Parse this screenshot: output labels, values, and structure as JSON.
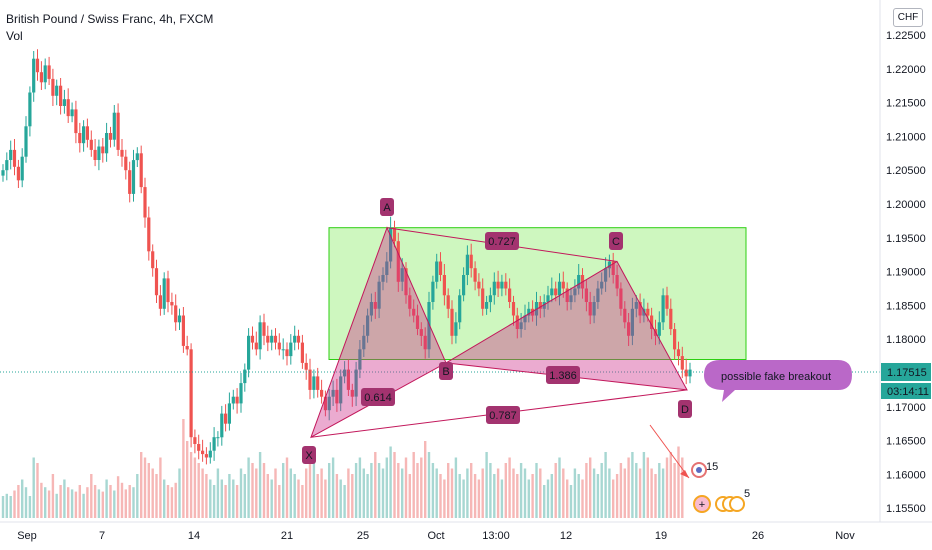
{
  "header": {
    "title": "British Pound / Swiss Franc, 4h, FXCM",
    "volume_label": "Vol",
    "currency": "CHF"
  },
  "price_axis": {
    "ticks": [
      "1.22500",
      "1.22000",
      "1.21500",
      "1.21000",
      "1.20500",
      "1.20000",
      "1.19500",
      "1.19000",
      "1.18500",
      "1.18000",
      "1.17500",
      "1.17000",
      "1.16500",
      "1.16000",
      "1.15500"
    ],
    "last_price": "1.17515",
    "countdown": "03:14:11"
  },
  "time_axis": {
    "ticks": [
      "Sep",
      "7",
      "14",
      "21",
      "25",
      "Oct",
      "13:00",
      "12",
      "19",
      "26",
      "Nov"
    ]
  },
  "pattern": {
    "points": [
      "X",
      "A",
      "B",
      "C",
      "D"
    ],
    "ratios": [
      "0.614",
      "0.727",
      "1.386",
      "0.787"
    ]
  },
  "callout": "possible fake breakout",
  "events": {
    "count_top": "15",
    "count_bottom": "5"
  },
  "colors": {
    "up": "#26a69a",
    "down": "#ef5350",
    "vol_up": "#a7d7d2",
    "vol_down": "#f6b7b6",
    "pattern_fill": "#cc2e8a",
    "pattern_stroke": "#c2185b",
    "zone_fill": "#a5f08a",
    "zone_stroke": "#2ccf12",
    "label_bg": "#a3336f",
    "callout_bg": "#ba68c8",
    "last_price_bg": "#26a69a"
  },
  "chart_data": {
    "type": "candlestick",
    "symbol": "British Pound / Swiss Franc",
    "interval": "4h",
    "source": "FXCM",
    "ylim": [
      1.153,
      1.227
    ],
    "last_price": 1.17515,
    "series_close": [
      1.205,
      1.2065,
      1.208,
      1.2055,
      1.2035,
      1.207,
      1.2115,
      1.2165,
      1.2215,
      1.2195,
      1.218,
      1.2205,
      1.2185,
      1.216,
      1.2175,
      1.2145,
      1.2155,
      1.213,
      1.214,
      1.2105,
      1.209,
      1.2115,
      1.2095,
      1.208,
      1.2065,
      1.2085,
      1.2075,
      1.2105,
      1.2095,
      1.2135,
      1.208,
      1.207,
      1.205,
      1.2015,
      1.2065,
      1.2075,
      1.2025,
      1.198,
      1.193,
      1.1905,
      1.1865,
      1.1845,
      1.189,
      1.1855,
      1.185,
      1.1825,
      1.1835,
      1.179,
      1.1785,
      1.1655,
      1.1645,
      1.1635,
      1.163,
      1.1625,
      1.1635,
      1.1655,
      1.1655,
      1.169,
      1.1675,
      1.1705,
      1.1715,
      1.1705,
      1.1735,
      1.1755,
      1.1805,
      1.1795,
      1.1785,
      1.1825,
      1.1805,
      1.1795,
      1.1805,
      1.1795,
      1.1785,
      1.1785,
      1.1775,
      1.1795,
      1.1805,
      1.1795,
      1.1765,
      1.1755,
      1.1725,
      1.1745,
      1.1725,
      1.1715,
      1.1695,
      1.1715,
      1.1725,
      1.1705,
      1.1745,
      1.1755,
      1.1725,
      1.1715,
      1.1755,
      1.1785,
      1.1805,
      1.1835,
      1.1855,
      1.1845,
      1.1885,
      1.1895,
      1.1915,
      1.1965,
      1.1945,
      1.1885,
      1.1905,
      1.1865,
      1.1845,
      1.1835,
      1.1815,
      1.1805,
      1.1785,
      1.1855,
      1.1885,
      1.1915,
      1.1895,
      1.1865,
      1.1845,
      1.1805,
      1.1825,
      1.1865,
      1.1895,
      1.1925,
      1.1905,
      1.1885,
      1.1875,
      1.1845,
      1.1855,
      1.1865,
      1.1885,
      1.1875,
      1.1885,
      1.1875,
      1.1855,
      1.1835,
      1.1815,
      1.1825,
      1.1835,
      1.1845,
      1.1835,
      1.1855,
      1.1845,
      1.1855,
      1.1865,
      1.1875,
      1.1865,
      1.1885,
      1.1875,
      1.1855,
      1.1865,
      1.1875,
      1.1895,
      1.1875,
      1.1855,
      1.1835,
      1.1855,
      1.1875,
      1.1885,
      1.1905,
      1.1915,
      1.1895,
      1.1875,
      1.1845,
      1.1825,
      1.1805,
      1.1845,
      1.1855,
      1.1835,
      1.1845,
      1.1835,
      1.1815,
      1.1805,
      1.1825,
      1.1865,
      1.1845,
      1.1815,
      1.1785,
      1.1775,
      1.1755,
      1.1745,
      1.1755
    ],
    "volume_relative": [
      0.2,
      0.22,
      0.2,
      0.25,
      0.3,
      0.35,
      0.28,
      0.2,
      0.55,
      0.5,
      0.32,
      0.28,
      0.25,
      0.4,
      0.22,
      0.3,
      0.35,
      0.28,
      0.26,
      0.24,
      0.3,
      0.22,
      0.28,
      0.4,
      0.3,
      0.26,
      0.24,
      0.35,
      0.3,
      0.25,
      0.38,
      0.32,
      0.26,
      0.3,
      0.28,
      0.4,
      0.6,
      0.55,
      0.5,
      0.45,
      0.4,
      0.55,
      0.35,
      0.3,
      0.28,
      0.32,
      0.45,
      0.9,
      0.7,
      0.6,
      0.55,
      0.5,
      0.45,
      0.4,
      0.35,
      0.3,
      0.45,
      0.35,
      0.3,
      0.4,
      0.35,
      0.3,
      0.45,
      0.4,
      0.55,
      0.5,
      0.45,
      0.6,
      0.5,
      0.4,
      0.35,
      0.45,
      0.3,
      0.5,
      0.55,
      0.45,
      0.4,
      0.35,
      0.3,
      0.45,
      0.5,
      0.6,
      0.4,
      0.45,
      0.35,
      0.5,
      0.55,
      0.4,
      0.35,
      0.3,
      0.45,
      0.4,
      0.5,
      0.55,
      0.45,
      0.4,
      0.5,
      0.6,
      0.5,
      0.45,
      0.55,
      0.65,
      0.6,
      0.5,
      0.45,
      0.55,
      0.4,
      0.6,
      0.5,
      0.55,
      0.7,
      0.6,
      0.5,
      0.45,
      0.4,
      0.35,
      0.5,
      0.45,
      0.55,
      0.4,
      0.35,
      0.45,
      0.5,
      0.4,
      0.35,
      0.45,
      0.6,
      0.5,
      0.4,
      0.45,
      0.35,
      0.5,
      0.55,
      0.45,
      0.4,
      0.5,
      0.45,
      0.35,
      0.4,
      0.5,
      0.45,
      0.3,
      0.35,
      0.4,
      0.5,
      0.55,
      0.45,
      0.35,
      0.3,
      0.45,
      0.4,
      0.35,
      0.5,
      0.55,
      0.45,
      0.4,
      0.5,
      0.6,
      0.45,
      0.35,
      0.4,
      0.5,
      0.45,
      0.55,
      0.6,
      0.5,
      0.45,
      0.6,
      0.55,
      0.45,
      0.4,
      0.5,
      0.45,
      0.55,
      0.6,
      0.5,
      0.65,
      0.55
    ],
    "pattern_points": {
      "X": 1.1655,
      "A": 1.1965,
      "B": 1.1765,
      "C": 1.1915,
      "D": 1.1725
    },
    "pattern_ratios": {
      "XA_B": 0.614,
      "AB_C": 0.727,
      "BC_D": 1.386,
      "XA_D": 0.787
    },
    "zone": {
      "top": 1.1965,
      "bottom": 1.177
    },
    "grid": false
  }
}
